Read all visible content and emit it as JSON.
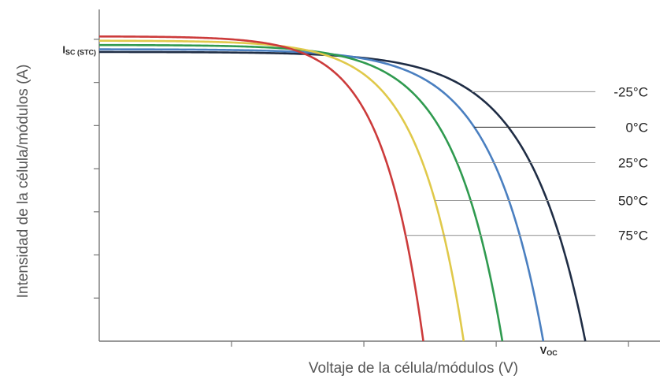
{
  "chart_data": {
    "type": "line",
    "xlabel": "Voltaje de la célula/módulos (V)",
    "ylabel": "Intensidad de la célula/módulos (A)",
    "xlim": [
      0,
      100
    ],
    "ylim": [
      0,
      100
    ],
    "grid": false,
    "legend": "right",
    "annotations": {
      "isc": {
        "main": "I",
        "sub": "SC (STC)",
        "y": 88
      },
      "voc": {
        "main": "V",
        "sub": "OC",
        "x": 80
      }
    },
    "series": [
      {
        "name": "-25°C",
        "color": "#1f2d45",
        "isc": 87.2,
        "voc": 86.7,
        "k": 8.5,
        "label_y": 75.2
      },
      {
        "name": "0°C",
        "color": "#4a7fc0",
        "isc": 88.0,
        "voc": 79.2,
        "k": 8.5,
        "label_y": 64.5
      },
      {
        "name": "25°C",
        "color": "#2f9a4f",
        "isc": 89.3,
        "voc": 71.9,
        "k": 8.2,
        "label_y": 53.8
      },
      {
        "name": "50°C",
        "color": "#e0c94a",
        "isc": 90.6,
        "voc": 65.0,
        "k": 8.0,
        "label_y": 42.4
      },
      {
        "name": "75°C",
        "color": "#cc3b3b",
        "isc": 91.9,
        "voc": 57.8,
        "k": 7.8,
        "label_y": 31.9
      }
    ]
  }
}
